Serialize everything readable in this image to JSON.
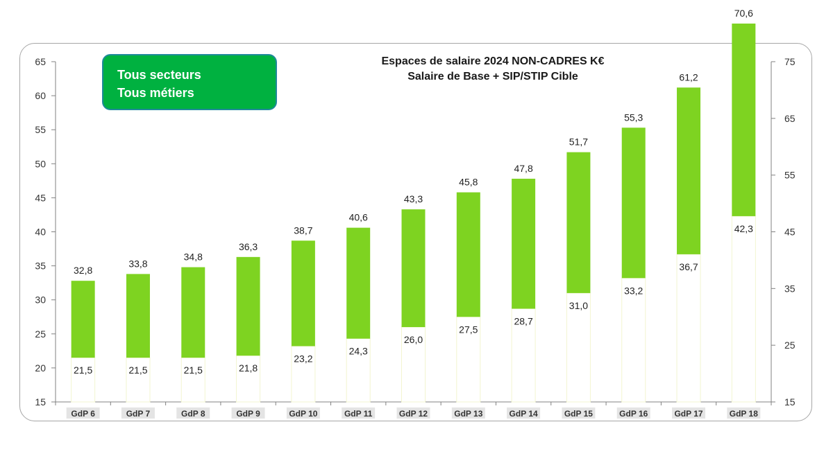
{
  "badge": {
    "line1": "Tous secteurs",
    "line2": "Tous métiers"
  },
  "chart_data": {
    "type": "bar",
    "subtype": "floating-range",
    "title": "Espaces de salaire 2024 NON-CADRES K€",
    "subtitle": "Salaire de Base + SIP/STIP Cible",
    "categories": [
      "GdP 6",
      "GdP 7",
      "GdP 8",
      "GdP 9",
      "GdP 10",
      "GdP 11",
      "GdP 12",
      "GdP 13",
      "GdP 14",
      "GdP 15",
      "GdP 16",
      "GdP 17",
      "GdP 18"
    ],
    "low_labels": [
      "21,5",
      "21,5",
      "21,5",
      "21,8",
      "23,2",
      "24,3",
      "26,0",
      "27,5",
      "28,7",
      "31,0",
      "33,2",
      "36,7",
      "42,3"
    ],
    "high_labels": [
      "32,8",
      "33,8",
      "34,8",
      "36,3",
      "38,7",
      "40,6",
      "43,3",
      "45,8",
      "47,8",
      "51,7",
      "55,3",
      "61,2",
      "70,6"
    ],
    "series": [
      {
        "role": "min",
        "values": [
          21.5,
          21.5,
          21.5,
          21.8,
          23.2,
          24.3,
          26.0,
          27.5,
          28.7,
          31.0,
          33.2,
          36.7,
          42.3
        ]
      },
      {
        "role": "max",
        "values": [
          32.8,
          33.8,
          34.8,
          36.3,
          38.7,
          40.6,
          43.3,
          45.8,
          47.8,
          51.7,
          55.3,
          61.2,
          70.6
        ]
      }
    ],
    "y_left": {
      "min": 15,
      "max": 65,
      "ticks": [
        "15",
        "20",
        "25",
        "30",
        "35",
        "40",
        "45",
        "50",
        "55",
        "60",
        "65"
      ]
    },
    "y_right": {
      "min": 15,
      "max": 75,
      "ticks": [
        "15",
        "25",
        "35",
        "45",
        "55",
        "65",
        "75"
      ]
    },
    "bar_color": "#7ed321",
    "grid": false,
    "legend": "none"
  }
}
